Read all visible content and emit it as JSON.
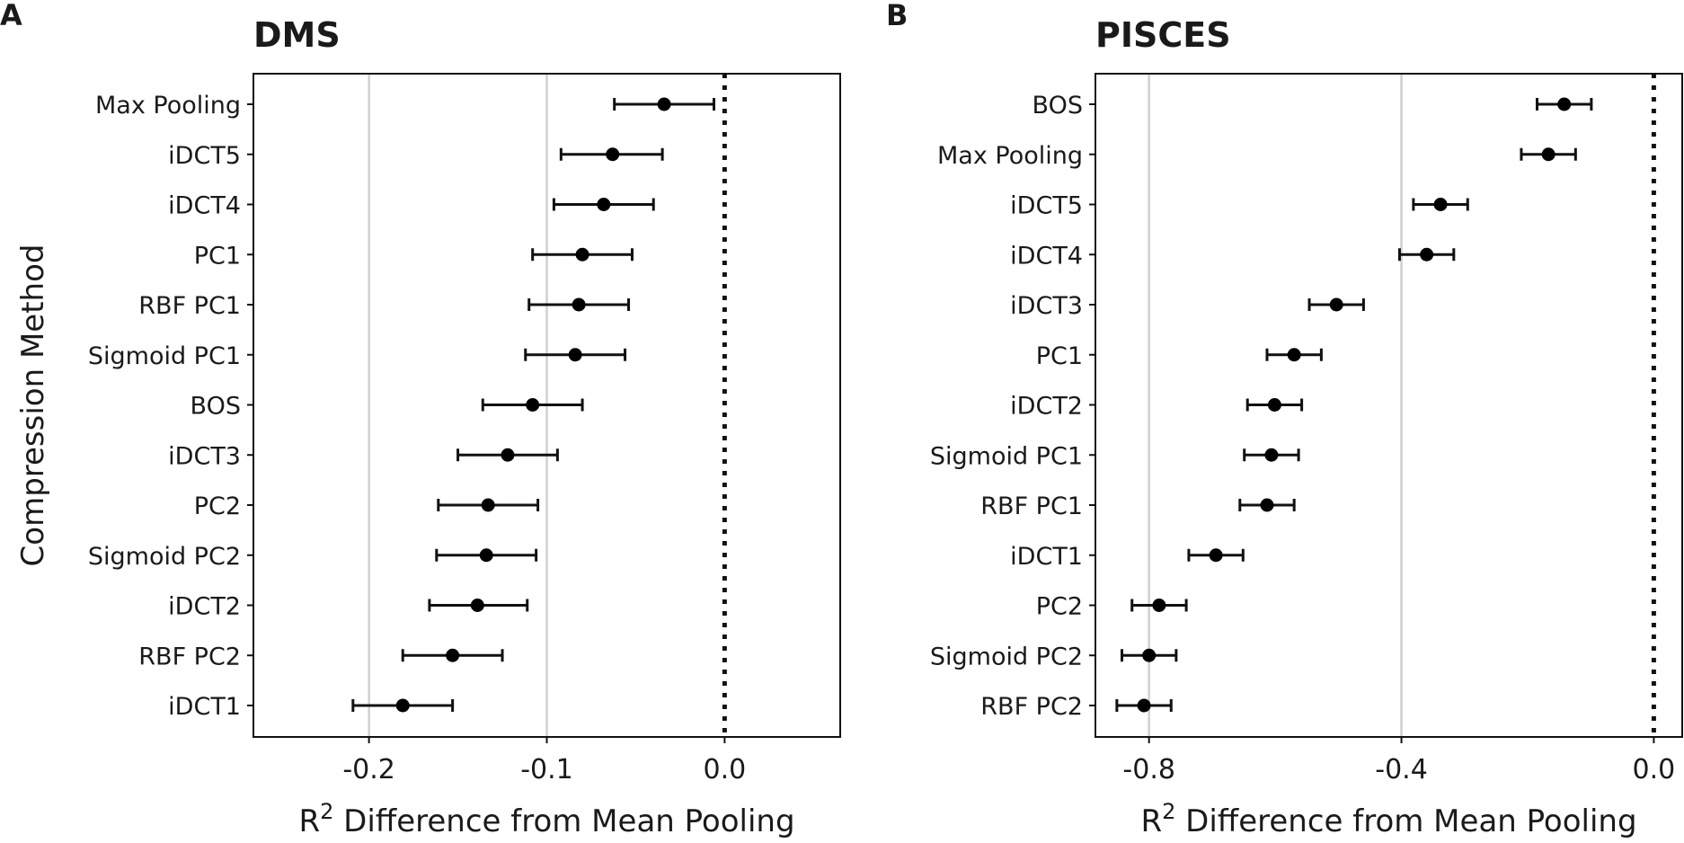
{
  "figure": {
    "ylabel": "Compression Method"
  },
  "chart_data": [
    {
      "type": "scatter",
      "panel": "A",
      "title": "DMS",
      "xlabel_parts": [
        "R",
        "2",
        " Difference from Mean Pooling"
      ],
      "xlim": [
        -0.265,
        0.065
      ],
      "xticks": [
        -0.2,
        -0.1,
        0.0
      ],
      "xtick_labels": [
        "-0.2",
        "-0.1",
        "0.0"
      ],
      "grid_x": [
        -0.2,
        -0.1
      ],
      "reference_line": 0.0,
      "categories": [
        "Max Pooling",
        "iDCT5",
        "iDCT4",
        "PC1",
        "RBF PC1",
        "Sigmoid PC1",
        "BOS",
        "iDCT3",
        "PC2",
        "Sigmoid PC2",
        "iDCT2",
        "RBF PC2",
        "iDCT1"
      ],
      "values": [
        -0.034,
        -0.063,
        -0.068,
        -0.08,
        -0.082,
        -0.084,
        -0.108,
        -0.122,
        -0.133,
        -0.134,
        -0.139,
        -0.153,
        -0.181
      ],
      "ci_low": [
        -0.062,
        -0.092,
        -0.096,
        -0.108,
        -0.11,
        -0.112,
        -0.136,
        -0.15,
        -0.161,
        -0.162,
        -0.166,
        -0.181,
        -0.209
      ],
      "ci_high": [
        -0.006,
        -0.035,
        -0.04,
        -0.052,
        -0.054,
        -0.056,
        -0.08,
        -0.094,
        -0.105,
        -0.106,
        -0.111,
        -0.125,
        -0.153
      ]
    },
    {
      "type": "scatter",
      "panel": "B",
      "title": "PISCES",
      "xlabel_parts": [
        "R",
        "2",
        " Difference from Mean Pooling"
      ],
      "xlim": [
        -0.885,
        0.045
      ],
      "xticks": [
        -0.8,
        -0.4,
        0.0
      ],
      "xtick_labels": [
        "-0.8",
        "-0.4",
        "0.0"
      ],
      "grid_x": [
        -0.8,
        -0.4
      ],
      "reference_line": 0.0,
      "categories": [
        "BOS",
        "Max Pooling",
        "iDCT5",
        "iDCT4",
        "iDCT3",
        "PC1",
        "iDCT2",
        "Sigmoid PC1",
        "RBF PC1",
        "iDCT1",
        "PC2",
        "Sigmoid PC2",
        "RBF PC2"
      ],
      "values": [
        -0.142,
        -0.167,
        -0.338,
        -0.36,
        -0.503,
        -0.57,
        -0.601,
        -0.606,
        -0.613,
        -0.694,
        -0.784,
        -0.8,
        -0.808
      ],
      "ci_low": [
        -0.185,
        -0.21,
        -0.381,
        -0.403,
        -0.546,
        -0.613,
        -0.644,
        -0.649,
        -0.656,
        -0.737,
        -0.827,
        -0.843,
        -0.851
      ],
      "ci_high": [
        -0.099,
        -0.124,
        -0.295,
        -0.317,
        -0.46,
        -0.527,
        -0.558,
        -0.563,
        -0.57,
        -0.651,
        -0.741,
        -0.757,
        -0.765
      ]
    }
  ]
}
